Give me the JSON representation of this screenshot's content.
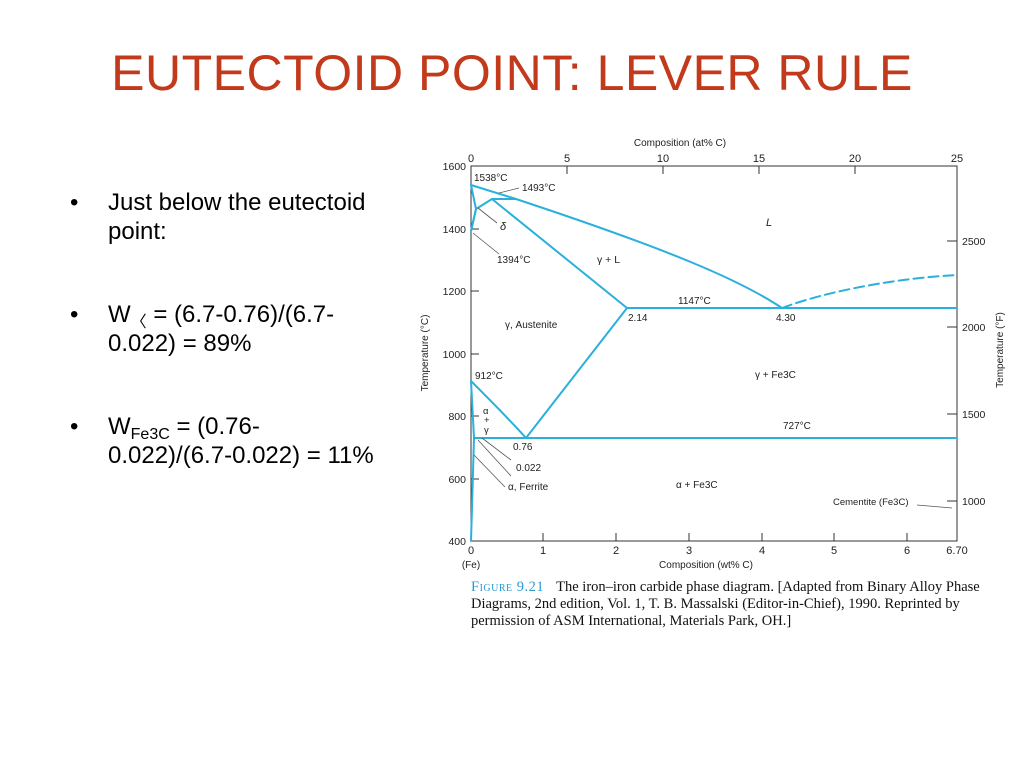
{
  "slide": {
    "title": "EUTECTOID POINT: LEVER RULE",
    "bullets": [
      {
        "pre": "Just below the eutectoid point:",
        "sub": "",
        "post": ""
      },
      {
        "pre": "W",
        "sub": "〈",
        "post": " = (6.7-0.76)/(6.7-0.022) = 89%"
      },
      {
        "pre": "W",
        "sub": "Fe3C",
        "post": " = (0.76-0.022)/(6.7-0.022) = 11%"
      }
    ],
    "bullet_symbol": "•"
  },
  "diagram": {
    "top_axis_label": "Composition (at% C)",
    "top_ticks": [
      "0",
      "5",
      "10",
      "15",
      "20",
      "25"
    ],
    "bottom_axis_label": "Composition (wt% C)",
    "bottom_ticks": [
      "0",
      "1",
      "2",
      "3",
      "4",
      "5",
      "6",
      "6.70"
    ],
    "bottom_sub_label": "(Fe)",
    "left_axis_label": "Temperature (°C)",
    "left_ticks": [
      "1600",
      "1400",
      "1200",
      "1000",
      "800",
      "600",
      "400"
    ],
    "right_axis_label": "Temperature (°F)",
    "right_ticks": [
      "2500",
      "2000",
      "1500",
      "1000"
    ],
    "labels": {
      "t1538": "1538°C",
      "t1493": "1493°C",
      "delta": "δ",
      "t1394": "1394°C",
      "liquid": "L",
      "gamma_l": "γ + L",
      "t1147": "1147°C",
      "c214": "2.14",
      "c430": "4.30",
      "austenite": "γ, Austenite",
      "t912": "912°C",
      "gamma_fe3c": "γ + Fe3C",
      "alpha_gamma": [
        "α",
        "+",
        "γ"
      ],
      "t727": "727°C",
      "c076": "0.76",
      "c0022": "0.022",
      "ferrite": "α, Ferrite",
      "alpha_fe3c": "α + Fe3C",
      "cementite": "Cementite (Fe3C)"
    },
    "line_color": "#2ab0dc"
  },
  "caption": {
    "figure_label": "Figure 9.21",
    "text": "The iron–iron carbide phase diagram. [Adapted from Binary Alloy Phase Diagrams, 2nd edition, Vol. 1, T. B. Massalski (Editor-in-Chief), 1990. Reprinted by permission of ASM International, Materials Park, OH.]"
  }
}
